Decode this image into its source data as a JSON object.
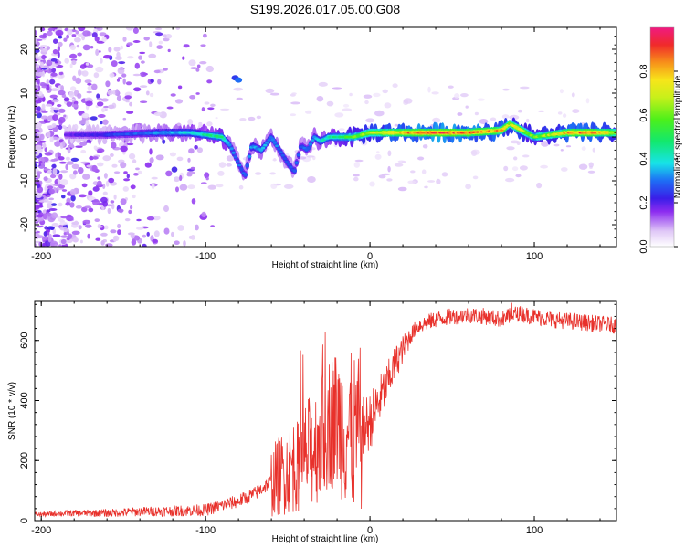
{
  "chart_data": [
    {
      "type": "heatmap",
      "title": "S199.2026.017.05.00.G08",
      "xlabel": "Height of straight line (km)",
      "ylabel": "Frequency (Hz)",
      "xlim": [
        -204,
        150
      ],
      "ylim": [
        -25,
        25
      ],
      "xticks": [
        -200,
        -100,
        0,
        100
      ],
      "yticks": [
        -20,
        -10,
        0,
        10,
        20
      ],
      "colorbar": {
        "label": "Normalized spectral amplitude",
        "range": [
          0,
          1
        ],
        "ticks": [
          0.0,
          0.2,
          0.4,
          0.6,
          0.8
        ]
      },
      "ridge": {
        "x": [
          -185,
          -160,
          -140,
          -125,
          -110,
          -100,
          -90,
          -85,
          -80,
          -76,
          -72,
          -66,
          -60,
          -55,
          -50,
          -46,
          -42,
          -38,
          -34,
          -30,
          -25,
          -20,
          -10,
          0,
          20,
          40,
          60,
          80,
          85,
          90,
          95,
          100,
          110,
          120,
          130,
          140,
          150
        ],
        "freq": [
          0.5,
          0.5,
          0.8,
          1.0,
          1.0,
          0.5,
          0,
          -2,
          -6,
          -9,
          -2,
          -3,
          0,
          -3,
          -6,
          -8,
          -2,
          -3,
          0,
          -1,
          0,
          0,
          0,
          1,
          1,
          1,
          1,
          1.5,
          3,
          2,
          1,
          0,
          0.5,
          1,
          1,
          1,
          1
        ],
        "amplitude": [
          0.2,
          0.25,
          0.3,
          0.35,
          0.4,
          0.45,
          0.5,
          0.35,
          0.3,
          0.3,
          0.35,
          0.35,
          0.35,
          0.3,
          0.3,
          0.3,
          0.3,
          0.3,
          0.35,
          0.4,
          0.45,
          0.5,
          0.6,
          0.7,
          0.85,
          0.95,
          0.9,
          0.85,
          0.7,
          0.75,
          0.65,
          0.6,
          0.7,
          0.85,
          0.9,
          0.85,
          0.7
        ]
      }
    },
    {
      "type": "line",
      "xlabel": "Height of straight line (km)",
      "ylabel": "SNR (10 * v/v)",
      "xlim": [
        -204,
        150
      ],
      "ylim": [
        0,
        730
      ],
      "xticks": [
        -200,
        -100,
        0,
        100
      ],
      "yticks": [
        0,
        200,
        400,
        600
      ],
      "series": [
        {
          "name": "SNR",
          "color": "#e8312b",
          "x": [
            -204,
            -180,
            -160,
            -140,
            -120,
            -100,
            -90,
            -80,
            -70,
            -60,
            -50,
            -40,
            -30,
            -25,
            -20,
            -15,
            -10,
            -5,
            0,
            5,
            10,
            15,
            20,
            25,
            30,
            40,
            50,
            60,
            70,
            80,
            90,
            100,
            110,
            120,
            130,
            140,
            150
          ],
          "y": [
            20,
            25,
            25,
            30,
            32,
            35,
            50,
            65,
            90,
            130,
            170,
            210,
            270,
            330,
            340,
            300,
            290,
            300,
            330,
            390,
            450,
            520,
            570,
            620,
            650,
            670,
            680,
            685,
            680,
            670,
            690,
            680,
            670,
            665,
            660,
            655,
            650
          ]
        }
      ]
    }
  ]
}
